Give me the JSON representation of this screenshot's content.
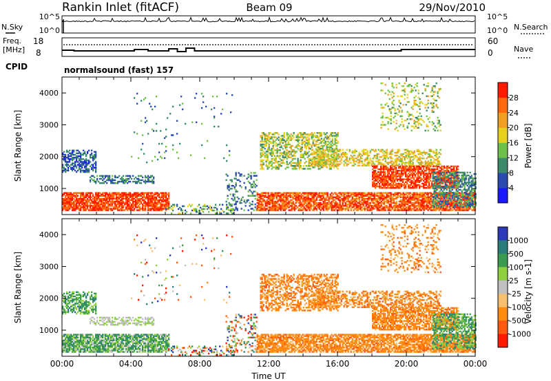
{
  "header": {
    "station": "Rankin Inlet (fitACF)",
    "beam": "Beam 09",
    "date": "29/Nov/2010"
  },
  "noise_panel": {
    "left_label": "N.Sky",
    "right_label": "N.Search",
    "left_ticks": [
      "10^5",
      "10^0"
    ],
    "right_ticks": [
      "10^5",
      "10^0"
    ]
  },
  "freq_panel": {
    "left_label_1": "Freq.",
    "left_label_2": "[MHz]",
    "right_label": "Nave",
    "left_ticks": [
      "18",
      "8"
    ],
    "right_ticks": [
      "60",
      "0"
    ]
  },
  "cpid": {
    "label": "CPID",
    "value": "normalsound (fast) 157"
  },
  "chart_data": [
    {
      "type": "heatmap",
      "quantity": "Power",
      "ylabel": "Slant Range [km]",
      "ylim": [
        180,
        4500
      ],
      "y_ticks": [
        1000,
        2000,
        3000,
        4000
      ],
      "xlabel": "",
      "xlim": [
        "00:00",
        "24:00"
      ],
      "colorbar": {
        "label": "Power [dB]",
        "range": [
          0,
          32
        ],
        "tick_labels": [
          "4",
          "8",
          "12",
          "16",
          "20",
          "24",
          "28"
        ],
        "bins": [
          {
            "from": 0,
            "to": 4,
            "color": "#1a1aff"
          },
          {
            "from": 4,
            "to": 8,
            "color": "#2a4ab0"
          },
          {
            "from": 8,
            "to": 12,
            "color": "#3c8a6a"
          },
          {
            "from": 12,
            "to": 16,
            "color": "#6fc04a"
          },
          {
            "from": 16,
            "to": 20,
            "color": "#e6d21e"
          },
          {
            "from": 20,
            "to": 24,
            "color": "#f0a020"
          },
          {
            "from": 24,
            "to": 28,
            "color": "#ff6a10"
          },
          {
            "from": 28,
            "to": 32,
            "color": "#ff1a00"
          }
        ]
      }
    },
    {
      "type": "heatmap",
      "quantity": "Velocity",
      "ylabel": "Slant Range [km]",
      "ylim": [
        180,
        4500
      ],
      "y_ticks": [
        1000,
        2000,
        3000,
        4000
      ],
      "xlabel": "Time UT",
      "xlim": [
        "00:00",
        "24:00"
      ],
      "x_tick_labels": [
        "00:00",
        "04:00",
        "08:00",
        "12:00",
        "16:00",
        "20:00",
        "00:00"
      ],
      "colorbar": {
        "label": "Velocity [m s-1]",
        "tick_labels": [
          "1000",
          "500",
          "100",
          "25",
          "-25",
          "-100",
          "-500",
          "-1000"
        ],
        "bins": [
          {
            "label": "> 1000",
            "color": "#2a3ab8"
          },
          {
            "label": "500 to 1000",
            "color": "#2d7c7c"
          },
          {
            "label": "100 to 500",
            "color": "#3a9a50"
          },
          {
            "label": "25 to 100",
            "color": "#8ed040"
          },
          {
            "label": "-25 to 25",
            "color": "#c0c0c0"
          },
          {
            "label": "-100 to -25",
            "color": "#f6c070"
          },
          {
            "label": "-500 to -100",
            "color": "#ff8a10"
          },
          {
            "label": "-1000 to -500",
            "color": "#ff5a10"
          },
          {
            "label": "< -1000",
            "color": "#ff1a00"
          }
        ]
      }
    }
  ]
}
